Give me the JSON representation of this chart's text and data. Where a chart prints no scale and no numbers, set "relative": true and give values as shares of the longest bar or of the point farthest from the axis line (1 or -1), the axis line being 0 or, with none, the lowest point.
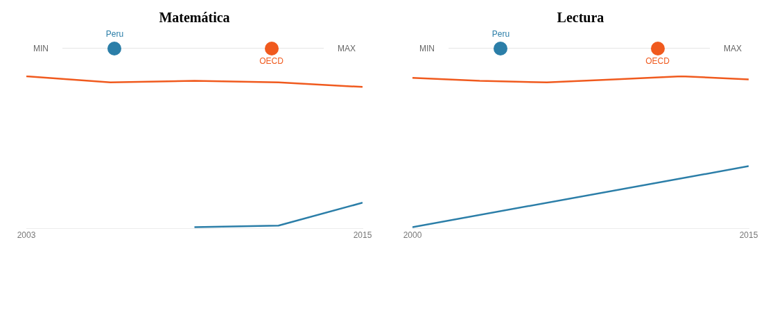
{
  "chart_data": [
    {
      "type": "line",
      "title": "Matemática",
      "relative": true,
      "legend": "top",
      "annotations": [
        "MIN",
        "MAX"
      ],
      "x": [
        2003,
        2006,
        2009,
        2012,
        2015
      ],
      "xlim": [
        2003,
        2015
      ],
      "xticks": [
        2003,
        2015
      ],
      "series": [
        {
          "name": "OECD",
          "color": "#f05a1e",
          "values": [
            1,
            0.96,
            0.97,
            0.96,
            0.93
          ]
        },
        {
          "name": "Peru",
          "color": "#2b7ea8",
          "values": [
            null,
            null,
            0.01,
            0.02,
            0.17
          ]
        }
      ]
    },
    {
      "type": "line",
      "title": "Lectura",
      "relative": true,
      "legend": "top",
      "annotations": [
        "MIN",
        "MAX"
      ],
      "x": [
        2000,
        2003,
        2006,
        2009,
        2012,
        2015
      ],
      "xlim": [
        2000,
        2015
      ],
      "xticks": [
        2000,
        2015
      ],
      "series": [
        {
          "name": "OECD",
          "color": "#f05a1e",
          "values": [
            0.99,
            0.97,
            0.96,
            0.98,
            1,
            0.98
          ]
        },
        {
          "name": "Peru",
          "color": "#2b7ea8",
          "x": [
            2000,
            2015
          ],
          "values": [
            0.01,
            0.41
          ]
        }
      ]
    }
  ]
}
